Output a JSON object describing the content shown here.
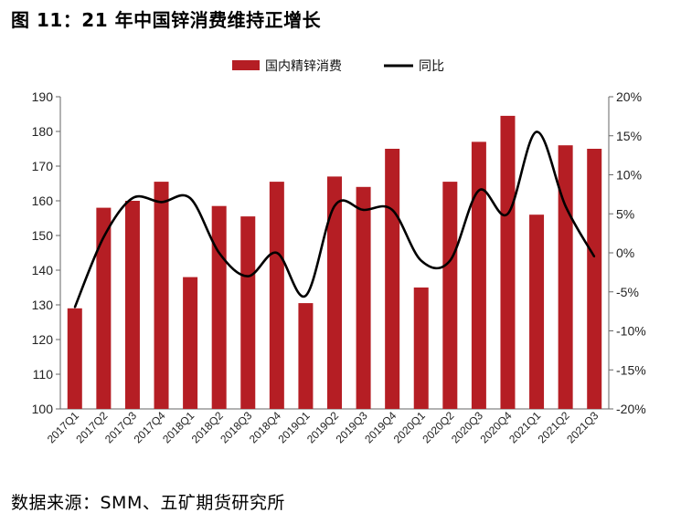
{
  "title": "图 11：21 年中国锌消费维持正增长",
  "source": "数据来源：SMM、五矿期货研究所",
  "chart_data": {
    "type": "bar",
    "categories": [
      "2017Q1",
      "2017Q2",
      "2017Q3",
      "2017Q4",
      "2018Q1",
      "2018Q2",
      "2018Q3",
      "2018Q4",
      "2019Q1",
      "2019Q2",
      "2019Q3",
      "2019Q4",
      "2020Q1",
      "2020Q2",
      "2020Q3",
      "2020Q4",
      "2021Q1",
      "2021Q2",
      "2021Q3"
    ],
    "series": [
      {
        "name": "国内精锌消费",
        "type": "bar",
        "axis": "left",
        "color": "#B51E24",
        "values": [
          129,
          158,
          160,
          165.5,
          138,
          158.5,
          155.5,
          165.5,
          130.5,
          167,
          164,
          175,
          135,
          165.5,
          177,
          184.5,
          156,
          176,
          175
        ]
      },
      {
        "name": "同比",
        "type": "line",
        "axis": "right",
        "color": "#000000",
        "values": [
          -7,
          2,
          7,
          6.5,
          7,
          0,
          -3,
          0,
          -5.5,
          6,
          5.5,
          5.5,
          -1,
          -1,
          8,
          5,
          15.5,
          6,
          -0.5
        ]
      }
    ],
    "ylim_left": [
      100,
      190
    ],
    "ylim_right": [
      -20,
      20
    ],
    "yticks_left": [
      "190",
      "180",
      "170",
      "160",
      "150",
      "140",
      "130",
      "120",
      "110",
      "100"
    ],
    "yticks_right": [
      "20%",
      "15%",
      "10%",
      "5%",
      "0%",
      "-5%",
      "-10%",
      "-15%",
      "-20%"
    ],
    "legend_position": "top-center",
    "grid": false
  }
}
